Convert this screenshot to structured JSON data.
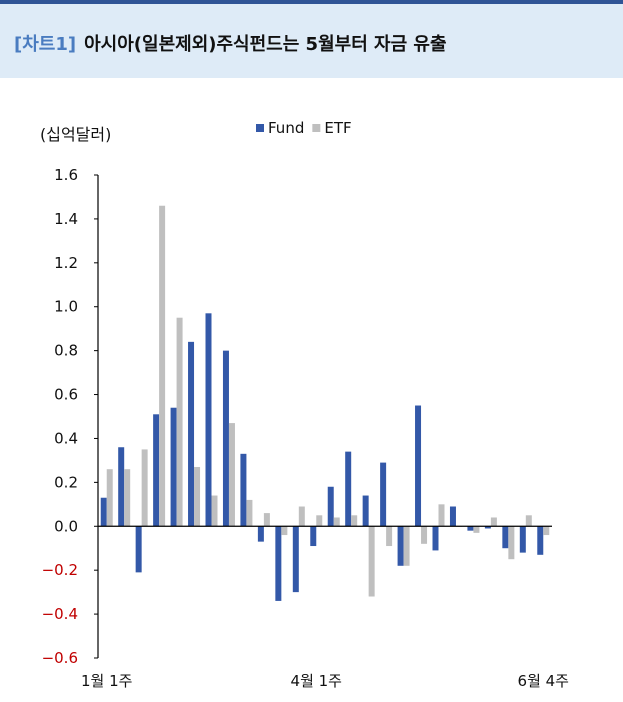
{
  "header": {
    "tag": "[차트1]",
    "title": "아시아(일본제외)주식펀드는 5월부터 자금 유출"
  },
  "colors": {
    "header_rule": "#2f5496",
    "header_band": "#deebf7",
    "tag": "#4a7cc0",
    "fund": "#3358a8",
    "etf": "#bfbfbf",
    "negative_tick": "#c00000",
    "axis": "#000000"
  },
  "chart_data": {
    "type": "bar",
    "unit_label": "(십억달러)",
    "ylim": [
      -0.6,
      1.6
    ],
    "yticks": [
      1.6,
      1.4,
      1.2,
      1.0,
      0.8,
      0.6,
      0.4,
      0.2,
      0.0,
      -0.2,
      -0.4,
      -0.6
    ],
    "ytick_labels": [
      "1.6",
      "1.4",
      "1.2",
      "1.0",
      "0.8",
      "0.6",
      "0.4",
      "0.2",
      "0.0",
      "−0.2",
      "−0.4",
      "−0.6"
    ],
    "category_labels": [
      {
        "index": 0,
        "text": "1월  1주"
      },
      {
        "index": 12,
        "text": "4월  1주"
      },
      {
        "index": 25,
        "text": "6월  4주"
      }
    ],
    "legend_position": "top-center",
    "grid": false,
    "series": [
      {
        "name": "Fund",
        "values": [
          0.13,
          0.36,
          -0.21,
          0.51,
          0.54,
          0.84,
          0.97,
          0.8,
          0.33,
          -0.07,
          -0.34,
          -0.3,
          -0.09,
          0.18,
          0.34,
          0.14,
          0.29,
          -0.18,
          0.55,
          -0.11,
          0.09,
          -0.02,
          -0.01,
          -0.1,
          -0.12,
          -0.13
        ]
      },
      {
        "name": "ETF",
        "values": [
          0.26,
          0.26,
          0.35,
          1.46,
          0.95,
          0.27,
          0.14,
          0.47,
          0.12,
          0.06,
          -0.04,
          0.09,
          0.05,
          0.04,
          0.05,
          -0.32,
          -0.09,
          -0.18,
          -0.08,
          0.1,
          0.0,
          -0.03,
          0.04,
          -0.15,
          0.05,
          -0.04
        ]
      }
    ]
  }
}
